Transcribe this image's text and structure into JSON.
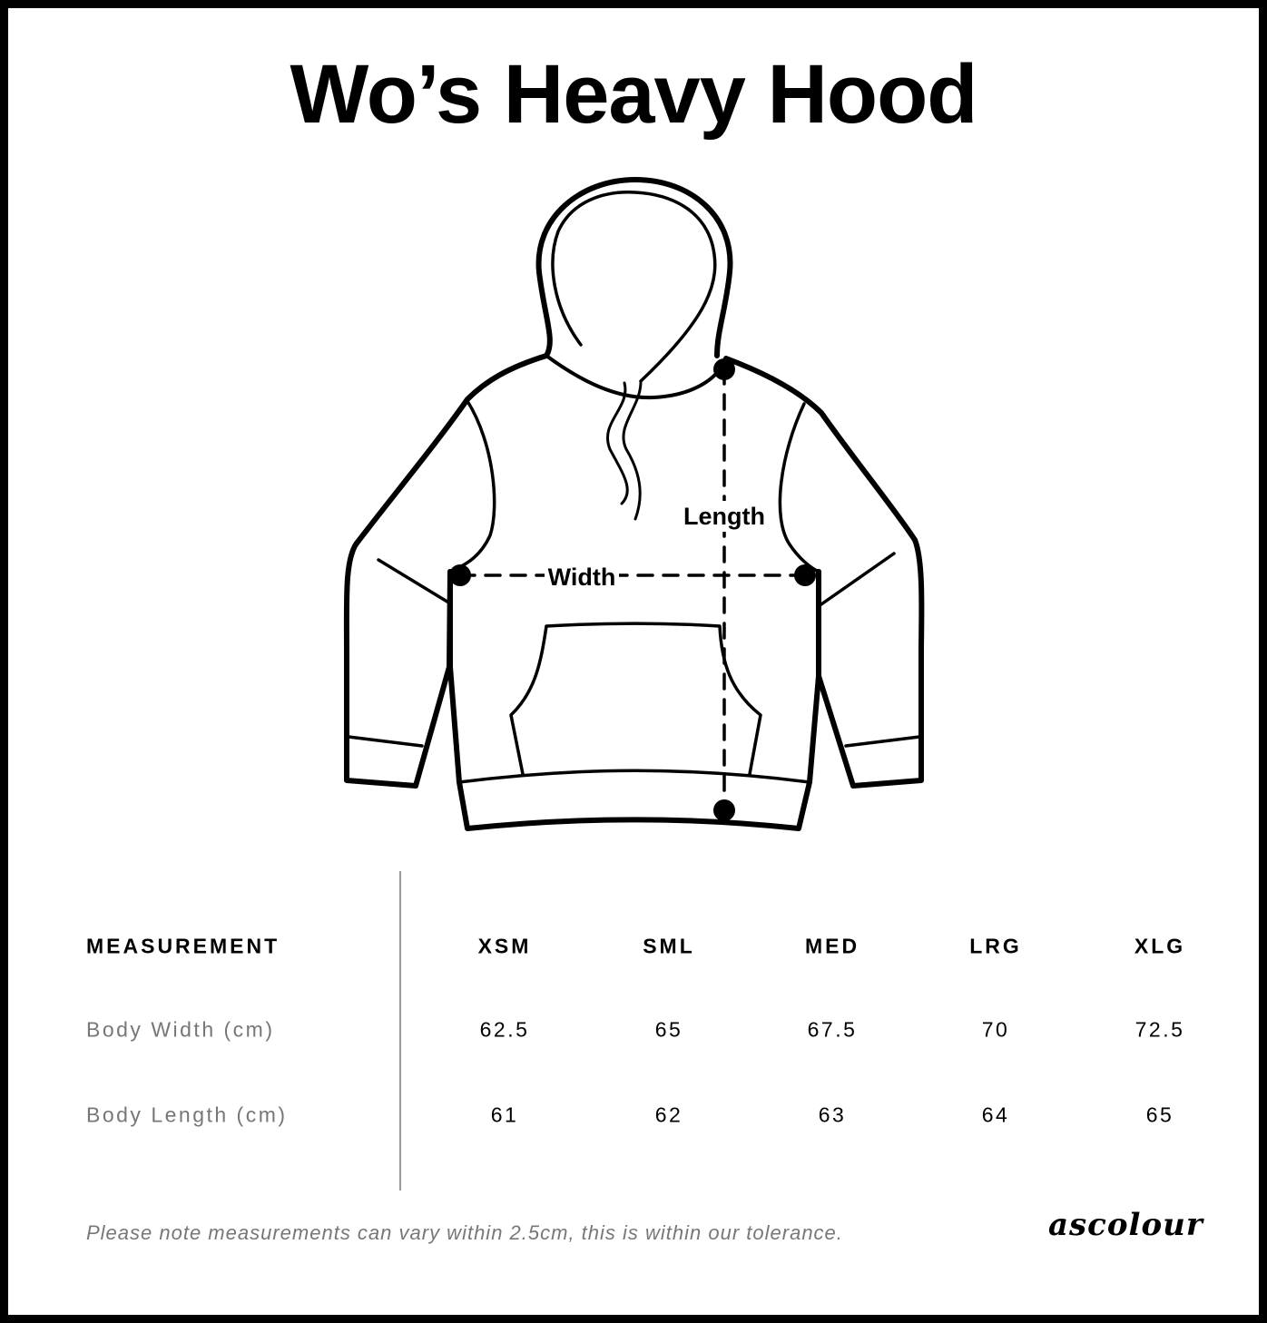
{
  "title": "Wo’s Heavy Hood",
  "diagram": {
    "width_label": "Width",
    "length_label": "Length"
  },
  "table": {
    "header": {
      "label": "MEASUREMENT",
      "sizes": [
        "XSM",
        "SML",
        "MED",
        "LRG",
        "XLG"
      ]
    },
    "rows": [
      {
        "label": "Body Width (cm)",
        "values": [
          "62.5",
          "65",
          "67.5",
          "70",
          "72.5"
        ]
      },
      {
        "label": "Body Length (cm)",
        "values": [
          "61",
          "62",
          "63",
          "64",
          "65"
        ]
      }
    ]
  },
  "note": "Please note measurements can vary within 2.5cm, this is within our tolerance.",
  "brand": "ascolour"
}
